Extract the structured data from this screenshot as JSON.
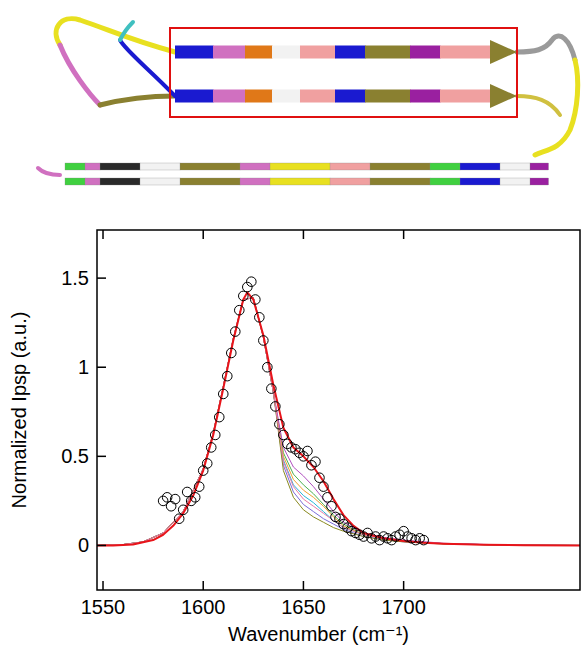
{
  "chart_data": {
    "type": "line",
    "x_label": "Wavenumber (cm⁻¹)",
    "y_label": "Normalized Ipsp (a.u.)",
    "xlim": [
      1547,
      1788
    ],
    "ylim": [
      -0.25,
      1.77
    ],
    "xticks": [
      1550,
      1600,
      1650,
      1700
    ],
    "yticks": [
      0,
      0.5,
      1,
      1.5
    ],
    "grid": false,
    "series": [
      {
        "type": "line",
        "color": "#4caf50",
        "x": [
          1547,
          1560,
          1570,
          1580,
          1590,
          1600,
          1605,
          1610,
          1615,
          1620,
          1625,
          1630,
          1635,
          1640,
          1645,
          1650,
          1655,
          1660,
          1665,
          1670,
          1680,
          1690,
          1700,
          1720,
          1750,
          1788
        ],
        "values": [
          0,
          0.005,
          0.02,
          0.07,
          0.19,
          0.43,
          0.63,
          0.89,
          1.16,
          1.38,
          1.39,
          1.17,
          0.86,
          0.52,
          0.4,
          0.34,
          0.29,
          0.23,
          0.17,
          0.12,
          0.06,
          0.04,
          0.025,
          0.01,
          0.002,
          0
        ]
      },
      {
        "type": "line",
        "color": "#29b6d8",
        "x": [
          1547,
          1560,
          1570,
          1580,
          1590,
          1600,
          1605,
          1610,
          1615,
          1620,
          1625,
          1630,
          1635,
          1640,
          1645,
          1650,
          1655,
          1660,
          1665,
          1670,
          1680,
          1690,
          1700,
          1720,
          1750,
          1788
        ],
        "values": [
          0,
          0.005,
          0.02,
          0.07,
          0.19,
          0.43,
          0.63,
          0.89,
          1.16,
          1.38,
          1.39,
          1.17,
          0.86,
          0.48,
          0.34,
          0.28,
          0.24,
          0.19,
          0.14,
          0.1,
          0.06,
          0.04,
          0.025,
          0.01,
          0.002,
          0
        ]
      },
      {
        "type": "line",
        "color": "#7a6cd8",
        "x": [
          1547,
          1560,
          1570,
          1580,
          1590,
          1600,
          1605,
          1610,
          1615,
          1620,
          1625,
          1630,
          1635,
          1640,
          1645,
          1650,
          1655,
          1660,
          1665,
          1670,
          1680,
          1690,
          1700,
          1720,
          1750,
          1788
        ],
        "values": [
          0,
          0.005,
          0.02,
          0.07,
          0.19,
          0.43,
          0.63,
          0.89,
          1.16,
          1.38,
          1.39,
          1.17,
          0.86,
          0.45,
          0.3,
          0.23,
          0.19,
          0.15,
          0.12,
          0.09,
          0.05,
          0.035,
          0.02,
          0.01,
          0.002,
          0
        ]
      },
      {
        "type": "line",
        "color": "#f0a030",
        "x": [
          1547,
          1560,
          1570,
          1580,
          1590,
          1600,
          1605,
          1610,
          1615,
          1620,
          1625,
          1630,
          1635,
          1640,
          1645,
          1650,
          1655,
          1660,
          1665,
          1670,
          1680,
          1690,
          1700,
          1720,
          1750,
          1788
        ],
        "values": [
          0,
          0.005,
          0.02,
          0.07,
          0.19,
          0.43,
          0.63,
          0.89,
          1.16,
          1.38,
          1.39,
          1.17,
          0.86,
          0.5,
          0.37,
          0.31,
          0.27,
          0.22,
          0.16,
          0.11,
          0.06,
          0.04,
          0.025,
          0.01,
          0.002,
          0
        ]
      },
      {
        "type": "line",
        "color": "#b050c0",
        "x": [
          1547,
          1560,
          1570,
          1580,
          1590,
          1600,
          1605,
          1610,
          1615,
          1620,
          1625,
          1630,
          1635,
          1640,
          1645,
          1650,
          1655,
          1660,
          1665,
          1670,
          1680,
          1690,
          1700,
          1720,
          1750,
          1788
        ],
        "values": [
          0,
          0.005,
          0.02,
          0.07,
          0.19,
          0.43,
          0.63,
          0.89,
          1.16,
          1.38,
          1.39,
          1.17,
          0.86,
          0.55,
          0.44,
          0.39,
          0.33,
          0.26,
          0.19,
          0.13,
          0.07,
          0.045,
          0.03,
          0.012,
          0.003,
          0
        ]
      },
      {
        "type": "line",
        "color": "#8a8a20",
        "x": [
          1547,
          1560,
          1570,
          1580,
          1590,
          1600,
          1605,
          1610,
          1615,
          1620,
          1625,
          1630,
          1635,
          1640,
          1645,
          1650,
          1655,
          1660,
          1665,
          1670,
          1680,
          1690,
          1700,
          1720,
          1750,
          1788
        ],
        "values": [
          0,
          0.005,
          0.02,
          0.07,
          0.19,
          0.43,
          0.63,
          0.89,
          1.16,
          1.38,
          1.39,
          1.17,
          0.86,
          0.42,
          0.27,
          0.2,
          0.16,
          0.13,
          0.1,
          0.08,
          0.05,
          0.03,
          0.02,
          0.008,
          0.002,
          0
        ]
      },
      {
        "type": "line",
        "color": "#e87aa8",
        "x": [
          1547,
          1560,
          1570,
          1580,
          1590,
          1600,
          1605,
          1610,
          1615,
          1620,
          1625,
          1630,
          1635,
          1640,
          1645,
          1650,
          1655,
          1660,
          1665,
          1670,
          1680,
          1690,
          1700,
          1720,
          1750,
          1788
        ],
        "values": [
          0,
          0.005,
          0.02,
          0.07,
          0.19,
          0.43,
          0.63,
          0.89,
          1.16,
          1.38,
          1.39,
          1.17,
          0.86,
          0.47,
          0.33,
          0.26,
          0.22,
          0.18,
          0.14,
          0.1,
          0.06,
          0.04,
          0.025,
          0.01,
          0.002,
          0
        ]
      },
      {
        "type": "line",
        "color": "#e8141a",
        "x": [
          1547,
          1555,
          1565,
          1575,
          1580,
          1585,
          1590,
          1595,
          1600,
          1605,
          1610,
          1615,
          1620,
          1622,
          1625,
          1630,
          1635,
          1640,
          1645,
          1650,
          1655,
          1660,
          1665,
          1670,
          1675,
          1680,
          1690,
          1700,
          1710,
          1720,
          1740,
          1760,
          1788
        ],
        "values": [
          0,
          0,
          0.005,
          0.03,
          0.06,
          0.11,
          0.18,
          0.28,
          0.42,
          0.62,
          0.88,
          1.15,
          1.38,
          1.42,
          1.38,
          1.18,
          0.9,
          0.66,
          0.55,
          0.5,
          0.44,
          0.36,
          0.26,
          0.17,
          0.11,
          0.07,
          0.04,
          0.025,
          0.015,
          0.01,
          0.004,
          0.001,
          0
        ]
      },
      {
        "type": "scatter",
        "marker": "circle-open",
        "color": "#000000",
        "x": [
          1580,
          1582,
          1584,
          1586,
          1588,
          1590,
          1592,
          1594,
          1596,
          1598,
          1600,
          1602,
          1604,
          1606,
          1608,
          1610,
          1612,
          1614,
          1616,
          1618,
          1620,
          1622,
          1624,
          1626,
          1628,
          1630,
          1632,
          1634,
          1636,
          1638,
          1640,
          1642,
          1644,
          1646,
          1648,
          1650,
          1652,
          1654,
          1656,
          1658,
          1660,
          1662,
          1664,
          1666,
          1668,
          1670,
          1672,
          1674,
          1676,
          1678,
          1680,
          1682,
          1684,
          1686,
          1688,
          1690,
          1692,
          1694,
          1696,
          1698,
          1700,
          1702,
          1704,
          1706,
          1708,
          1710
        ],
        "values": [
          0.25,
          0.27,
          0.22,
          0.26,
          0.15,
          0.2,
          0.3,
          0.25,
          0.27,
          0.33,
          0.42,
          0.46,
          0.55,
          0.62,
          0.72,
          0.85,
          0.95,
          1.08,
          1.2,
          1.32,
          1.4,
          1.45,
          1.48,
          1.38,
          1.28,
          1.15,
          1.0,
          0.88,
          0.78,
          0.68,
          0.62,
          0.57,
          0.55,
          0.54,
          0.52,
          0.5,
          0.53,
          0.45,
          0.47,
          0.38,
          0.33,
          0.27,
          0.22,
          0.16,
          0.15,
          0.12,
          0.1,
          0.08,
          0.07,
          0.06,
          0.05,
          0.07,
          0.04,
          0.05,
          0.03,
          0.05,
          0.04,
          0.03,
          0.05,
          0.06,
          0.08,
          0.05,
          0.04,
          0.03,
          0.04,
          0.03
        ]
      }
    ]
  }
}
